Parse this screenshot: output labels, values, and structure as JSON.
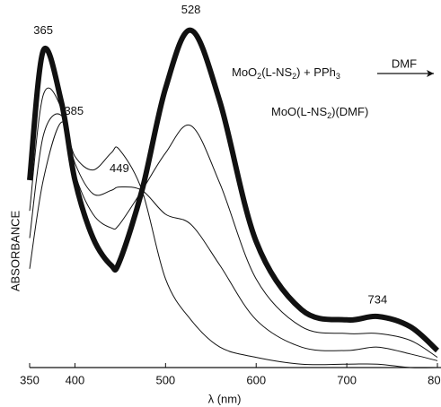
{
  "chart_data": {
    "type": "line",
    "x_label": "λ (nm)",
    "y_label": "ABSORBANCE",
    "x": [
      350,
      365,
      385,
      400,
      420,
      440,
      449,
      474,
      500,
      528,
      560,
      600,
      650,
      700,
      734,
      770,
      800
    ],
    "series": [
      {
        "color": "#111111",
        "values": [
          0.29,
          0.55,
          0.72,
          0.62,
          0.58,
          0.63,
          0.64,
          0.52,
          0.26,
          0.14,
          0.06,
          0.03,
          0.01,
          0.01,
          0.01,
          0.0,
          0.0
        ]
      },
      {
        "color": "#111111",
        "values": [
          0.38,
          0.68,
          0.74,
          0.6,
          0.51,
          0.52,
          0.53,
          0.52,
          0.45,
          0.42,
          0.3,
          0.14,
          0.06,
          0.05,
          0.06,
          0.04,
          0.02
        ]
      },
      {
        "color": "#111111",
        "values": [
          0.46,
          0.8,
          0.76,
          0.57,
          0.45,
          0.41,
          0.42,
          0.52,
          0.63,
          0.71,
          0.54,
          0.26,
          0.12,
          0.1,
          0.1,
          0.08,
          0.03
        ]
      },
      {
        "color": "#111111",
        "values": [
          0.55,
          0.93,
          0.78,
          0.55,
          0.38,
          0.3,
          0.31,
          0.52,
          0.82,
          0.99,
          0.78,
          0.37,
          0.17,
          0.14,
          0.15,
          0.12,
          0.05
        ]
      }
    ],
    "xlim": [
      350,
      800
    ],
    "xticks": [
      350,
      400,
      500,
      600,
      700,
      800
    ],
    "ylim": [
      0,
      1
    ],
    "annotations": [
      "365",
      "385",
      "449",
      "528",
      "734"
    ],
    "reaction": {
      "reactant_parts": [
        "MoO",
        "2",
        "(L-NS",
        "2",
        ") + PPh",
        "3"
      ],
      "condition": "DMF",
      "product_parts": [
        "MoO(L-NS",
        "2",
        ")(DMF)"
      ]
    }
  }
}
